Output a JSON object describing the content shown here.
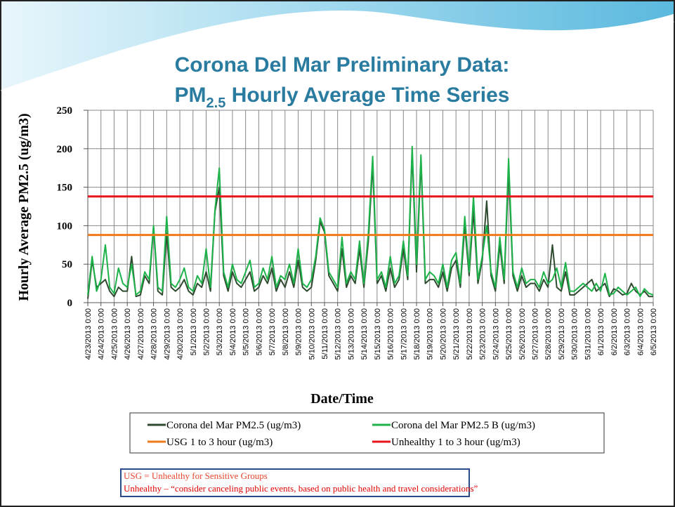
{
  "chart_data": {
    "type": "line",
    "title_line1": "Corona Del Mar Preliminary Data:",
    "title_line2": {
      "main": "PM",
      "sub": "2.5",
      "rest": " Hourly Average Time Series"
    },
    "y_label": "Hourly Average PM2.5 (ug/m3)",
    "x_label": "Date/Time",
    "ylim": [
      0,
      250
    ],
    "yticks": [
      0,
      50,
      100,
      150,
      200,
      250
    ],
    "grid": true,
    "legend": "bottom",
    "xticks": [
      "4/23/2013 0:00",
      "4/24/2013 0:00",
      "4/25/2013 0:00",
      "4/26/2013 0:00",
      "4/27/2013 0:00",
      "4/28/2013 0:00",
      "4/29/2013 0:00",
      "4/30/2013 0:00",
      "5/1/2013 0:00",
      "5/2/2013 0:00",
      "5/3/2013 0:00",
      "5/4/2013 0:00",
      "5/5/2013 0:00",
      "5/6/2013 0:00",
      "5/7/2013 0:00",
      "5/8/2013 0:00",
      "5/9/2013 0:00",
      "5/10/2013 0:00",
      "5/11/2013 0:00",
      "5/12/2013 0:00",
      "5/13/2013 0:00",
      "5/14/2013 0:00",
      "5/15/2013 0:00",
      "5/16/2013 0:00",
      "5/17/2013 0:00",
      "5/18/2013 0:00",
      "5/19/2013 0:00",
      "5/20/2013 0:00",
      "5/21/2013 0:00",
      "5/22/2013 0:00",
      "5/23/2013 0:00",
      "5/24/2013 0:00",
      "5/25/2013 0:00",
      "5/26/2013 0:00",
      "5/27/2013 0:00",
      "5/28/2013 0:00",
      "5/29/2013 0:00",
      "5/30/2013 0:00",
      "5/31/2013 0:00",
      "6/1/2013 0:00",
      "6/2/2013 0:00",
      "6/3/2013 0:00",
      "6/4/2013 0:00",
      "6/5/2013 0:00"
    ],
    "x": [
      "4/23/2013 0:00",
      "4/23/2013 8:00",
      "4/23/2013 16:00",
      "4/24/2013 0:00",
      "4/24/2013 8:00",
      "4/24/2013 16:00",
      "4/25/2013 0:00",
      "4/25/2013 8:00",
      "4/25/2013 16:00",
      "4/26/2013 0:00",
      "4/26/2013 8:00",
      "4/26/2013 16:00",
      "4/27/2013 0:00",
      "4/27/2013 8:00",
      "4/27/2013 16:00",
      "4/28/2013 0:00",
      "4/28/2013 8:00",
      "4/28/2013 16:00",
      "4/29/2013 0:00",
      "4/29/2013 8:00",
      "4/29/2013 16:00",
      "4/30/2013 0:00",
      "4/30/2013 8:00",
      "4/30/2013 16:00",
      "5/1/2013 0:00",
      "5/1/2013 8:00",
      "5/1/2013 16:00",
      "5/2/2013 0:00",
      "5/2/2013 8:00",
      "5/2/2013 16:00",
      "5/3/2013 0:00",
      "5/3/2013 8:00",
      "5/3/2013 16:00",
      "5/4/2013 0:00",
      "5/4/2013 8:00",
      "5/4/2013 16:00",
      "5/5/2013 0:00",
      "5/5/2013 8:00",
      "5/5/2013 16:00",
      "5/6/2013 0:00",
      "5/6/2013 8:00",
      "5/6/2013 16:00",
      "5/7/2013 0:00",
      "5/7/2013 8:00",
      "5/7/2013 16:00",
      "5/8/2013 0:00",
      "5/8/2013 8:00",
      "5/8/2013 16:00",
      "5/9/2013 0:00",
      "5/9/2013 8:00",
      "5/9/2013 16:00",
      "5/10/2013 0:00",
      "5/10/2013 8:00",
      "5/10/2013 16:00",
      "5/11/2013 0:00",
      "5/11/2013 8:00",
      "5/11/2013 16:00",
      "5/12/2013 0:00",
      "5/12/2013 8:00",
      "5/12/2013 16:00",
      "5/13/2013 0:00",
      "5/13/2013 8:00",
      "5/13/2013 16:00",
      "5/14/2013 0:00",
      "5/14/2013 8:00",
      "5/14/2013 16:00",
      "5/15/2013 0:00",
      "5/15/2013 8:00",
      "5/15/2013 16:00",
      "5/16/2013 0:00",
      "5/16/2013 8:00",
      "5/16/2013 16:00",
      "5/17/2013 0:00",
      "5/17/2013 8:00",
      "5/17/2013 16:00",
      "5/18/2013 0:00",
      "5/18/2013 8:00",
      "5/18/2013 16:00",
      "5/19/2013 0:00",
      "5/19/2013 8:00",
      "5/19/2013 16:00",
      "5/20/2013 0:00",
      "5/20/2013 8:00",
      "5/20/2013 16:00",
      "5/21/2013 0:00",
      "5/21/2013 8:00",
      "5/21/2013 16:00",
      "5/22/2013 0:00",
      "5/22/2013 8:00",
      "5/22/2013 16:00",
      "5/23/2013 0:00",
      "5/23/2013 8:00",
      "5/23/2013 16:00",
      "5/24/2013 0:00",
      "5/24/2013 8:00",
      "5/24/2013 16:00",
      "5/25/2013 0:00",
      "5/25/2013 8:00",
      "5/25/2013 16:00",
      "5/26/2013 0:00",
      "5/26/2013 8:00",
      "5/26/2013 16:00",
      "5/27/2013 0:00",
      "5/27/2013 8:00",
      "5/27/2013 16:00",
      "5/28/2013 0:00",
      "5/28/2013 8:00",
      "5/28/2013 16:00",
      "5/29/2013 0:00",
      "5/29/2013 8:00",
      "5/29/2013 16:00",
      "5/30/2013 0:00",
      "5/30/2013 8:00",
      "5/30/2013 16:00",
      "5/31/2013 0:00",
      "5/31/2013 8:00",
      "5/31/2013 16:00",
      "6/1/2013 0:00",
      "6/1/2013 8:00",
      "6/1/2013 16:00",
      "6/2/2013 0:00",
      "6/2/2013 8:00",
      "6/2/2013 16:00",
      "6/3/2013 0:00",
      "6/3/2013 8:00",
      "6/3/2013 16:00",
      "6/4/2013 0:00",
      "6/4/2013 8:00",
      "6/4/2013 16:00",
      "6/5/2013 0:00"
    ],
    "series": [
      {
        "name": "Corona del Mar PM2.5 (ug/m3)",
        "color": "#2f4a2f",
        "values": [
          5,
          55,
          20,
          25,
          30,
          15,
          8,
          20,
          15,
          15,
          60,
          8,
          10,
          35,
          25,
          98,
          15,
          10,
          90,
          20,
          15,
          20,
          30,
          15,
          10,
          25,
          20,
          40,
          15,
          118,
          150,
          35,
          15,
          40,
          25,
          20,
          30,
          40,
          15,
          20,
          35,
          25,
          45,
          15,
          30,
          20,
          40,
          20,
          55,
          20,
          15,
          20,
          55,
          105,
          92,
          35,
          25,
          15,
          70,
          20,
          35,
          25,
          70,
          20,
          80,
          180,
          25,
          35,
          15,
          45,
          20,
          30,
          70,
          30,
          195,
          40,
          185,
          25,
          30,
          30,
          20,
          40,
          15,
          45,
          55,
          20,
          100,
          35,
          120,
          25,
          55,
          132,
          35,
          15,
          75,
          25,
          175,
          35,
          15,
          35,
          20,
          25,
          25,
          15,
          30,
          20,
          75,
          20,
          15,
          40,
          10,
          10,
          15,
          20,
          25,
          30,
          15,
          20,
          25,
          8,
          18,
          15,
          10,
          12,
          25,
          15,
          10,
          15,
          8,
          8
        ]
      },
      {
        "name": "Corona del Mar PM2.5 B (ug/m3)",
        "color": "#1db34a",
        "values": [
          10,
          60,
          15,
          30,
          75,
          20,
          12,
          45,
          25,
          20,
          50,
          10,
          15,
          40,
          30,
          100,
          20,
          15,
          112,
          25,
          20,
          30,
          45,
          20,
          15,
          35,
          25,
          70,
          20,
          120,
          175,
          40,
          20,
          50,
          30,
          25,
          40,
          55,
          20,
          25,
          45,
          30,
          60,
          20,
          35,
          30,
          50,
          25,
          70,
          25,
          20,
          30,
          60,
          110,
          95,
          40,
          30,
          20,
          85,
          25,
          40,
          30,
          80,
          25,
          90,
          190,
          30,
          40,
          20,
          60,
          25,
          35,
          80,
          35,
          203,
          50,
          192,
          30,
          40,
          35,
          25,
          50,
          20,
          55,
          65,
          25,
          112,
          40,
          138,
          30,
          60,
          100,
          40,
          20,
          85,
          30,
          187,
          40,
          20,
          45,
          25,
          30,
          30,
          20,
          40,
          25,
          30,
          45,
          20,
          52,
          15,
          15,
          20,
          25,
          20,
          15,
          25,
          15,
          38,
          10,
          12,
          20,
          15,
          10,
          15,
          20,
          8,
          18,
          12,
          10
        ]
      },
      {
        "name": "USG 1 to 3 hour (ug/m3)",
        "color": "#f07a1a",
        "x": [
          "4/23/2013 0:00",
          "6/5/2013 0:00"
        ],
        "values": [
          88,
          88
        ]
      },
      {
        "name": "Unhealthy 1 to 3 hour (ug/m3)",
        "color": "#e8141c",
        "x": [
          "4/23/2013 0:00",
          "6/5/2013 0:00"
        ],
        "values": [
          138,
          138
        ]
      }
    ],
    "note_line1": "USG = Unhealthy for Sensitive Groups",
    "note_line2": "Unhealthy – “consider canceling public events, based on public health and travel considerations”"
  }
}
